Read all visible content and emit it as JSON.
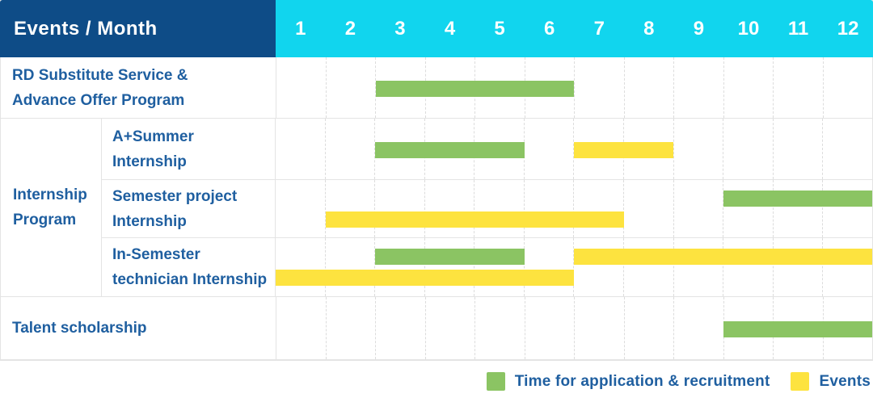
{
  "header": {
    "label": "Events / Month",
    "months": [
      "1",
      "2",
      "3",
      "4",
      "5",
      "6",
      "7",
      "8",
      "9",
      "10",
      "11",
      "12"
    ]
  },
  "colors": {
    "dark_blue": "#0E4C87",
    "cyan": "#11D5EE",
    "blue_text": "#1F5FA0",
    "green": "#8BC463",
    "yellow": "#FDE33F",
    "grid_line": "#E4E4E4",
    "column_line": "#DCDCDC"
  },
  "rows": [
    {
      "type": "single",
      "name": "rd-substitute-service",
      "label_lines": [
        "RD Substitute Service &",
        "Advance Offer Program"
      ],
      "height": 76,
      "lines": [
        [
          {
            "color": "green",
            "start": 3,
            "end": 6
          }
        ]
      ]
    },
    {
      "type": "group",
      "name": "internship-program",
      "group_label_lines": [
        "Internship",
        "Program"
      ],
      "children": [
        {
          "name": "a-plus-summer-internship",
          "label_lines": [
            "A+Summer",
            "Internship"
          ],
          "height": 76,
          "lines": [
            [
              {
                "color": "green",
                "start": 3,
                "end": 5
              },
              {
                "color": "yellow",
                "start": 7,
                "end": 8
              }
            ]
          ]
        },
        {
          "name": "semester-project-internship",
          "label_lines": [
            "Semester project",
            "Internship"
          ],
          "height": 72,
          "lines": [
            [
              {
                "color": "green",
                "start": 10,
                "end": 12
              }
            ],
            [
              {
                "color": "yellow",
                "start": 2,
                "end": 7
              }
            ]
          ]
        },
        {
          "name": "in-semester-technician-internship",
          "label_lines": [
            "In-Semester",
            "technician Internship"
          ],
          "height": 72,
          "lines": [
            [
              {
                "color": "green",
                "start": 3,
                "end": 5
              },
              {
                "color": "yellow",
                "start": 7,
                "end": 12
              }
            ],
            [
              {
                "color": "yellow",
                "start": 1,
                "end": 6
              }
            ]
          ]
        }
      ]
    },
    {
      "type": "single",
      "name": "talent-scholarship",
      "label_lines": [
        "Talent scholarship"
      ],
      "height": 78,
      "lines": [
        [
          {
            "color": "green",
            "start": 10,
            "end": 12
          }
        ]
      ]
    }
  ],
  "legend": [
    {
      "color": "green",
      "label": "Time for application & recruitment"
    },
    {
      "color": "yellow",
      "label": "Events"
    }
  ],
  "chart_data": {
    "type": "gantt",
    "x_unit": "month",
    "x_ticks": [
      1,
      2,
      3,
      4,
      5,
      6,
      7,
      8,
      9,
      10,
      11,
      12
    ],
    "legend": {
      "application": "Time for application & recruitment",
      "event": "Events"
    },
    "tasks": [
      {
        "name": "RD Substitute Service & Advance Offer Program",
        "group": null,
        "bars": [
          {
            "kind": "application",
            "months": [
              3,
              6
            ]
          }
        ]
      },
      {
        "name": "A+Summer Internship",
        "group": "Internship Program",
        "bars": [
          {
            "kind": "application",
            "months": [
              3,
              5
            ]
          },
          {
            "kind": "event",
            "months": [
              7,
              8
            ]
          }
        ]
      },
      {
        "name": "Semester project Internship",
        "group": "Internship Program",
        "bars": [
          {
            "kind": "application",
            "months": [
              10,
              12
            ]
          },
          {
            "kind": "event",
            "months": [
              2,
              7
            ]
          }
        ]
      },
      {
        "name": "In-Semester technician Internship",
        "group": "Internship Program",
        "bars": [
          {
            "kind": "application",
            "months": [
              3,
              5
            ]
          },
          {
            "kind": "event",
            "months": [
              7,
              12
            ]
          },
          {
            "kind": "event",
            "months": [
              1,
              6
            ]
          }
        ]
      },
      {
        "name": "Talent scholarship",
        "group": null,
        "bars": [
          {
            "kind": "application",
            "months": [
              10,
              12
            ]
          }
        ]
      }
    ]
  }
}
